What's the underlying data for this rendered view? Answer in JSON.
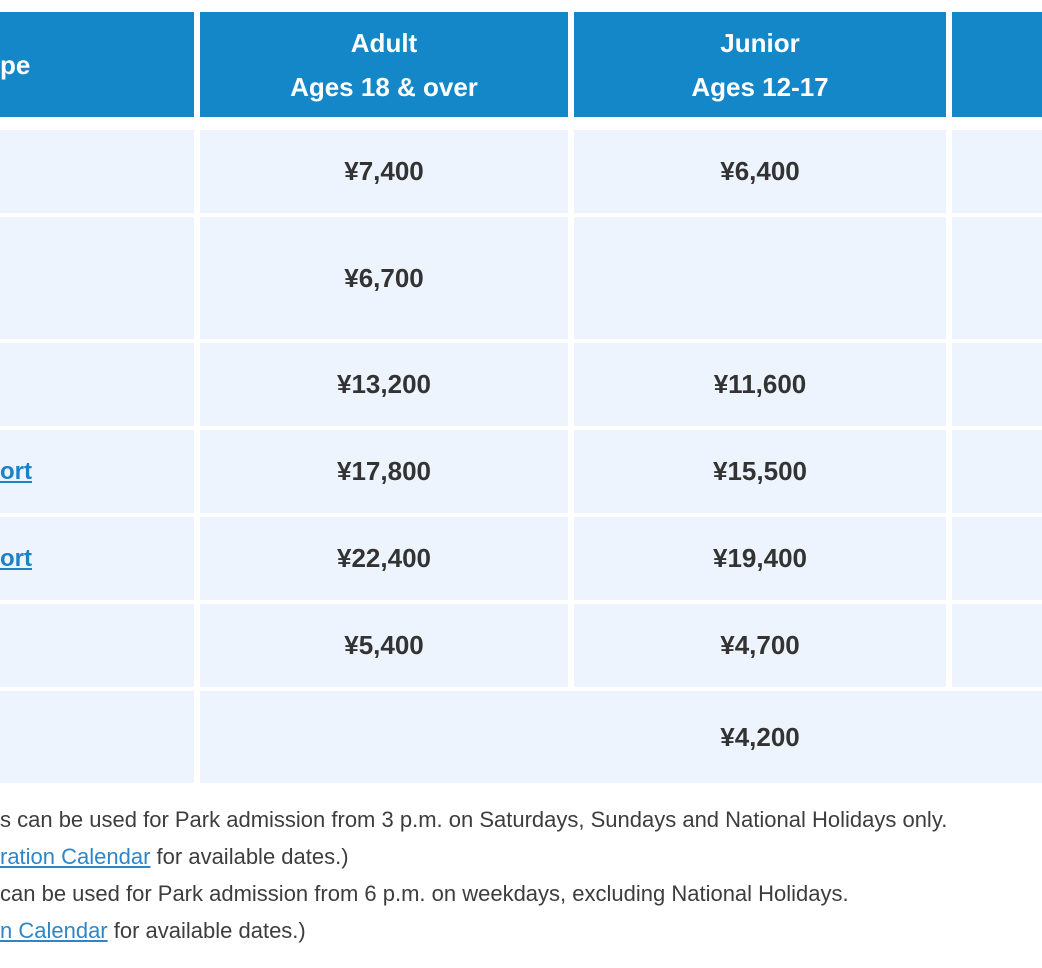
{
  "colors": {
    "header_bg": "#1487C9",
    "cell_bg": "#EDF4FD",
    "price_text": "#333333",
    "table_link": "#1B82C5",
    "note_link": "#2E86C8",
    "note_text": "#3D3D3D"
  },
  "table": {
    "header": {
      "ticket_type_fragment": "pe",
      "adult_title": "Adult",
      "adult_subtitle": "Ages 18 & over",
      "junior_title": "Junior",
      "junior_subtitle": "Ages 12-17"
    },
    "rows": [
      {
        "adult": "¥7,400",
        "junior": "¥6,400"
      },
      {
        "adult": "¥6,700",
        "junior": ""
      },
      {
        "adult": "¥13,200",
        "junior": "¥11,600"
      },
      {
        "name_link": "ort",
        "adult": "¥17,800",
        "junior": "¥15,500"
      },
      {
        "name_link": "ort",
        "adult": "¥22,400",
        "junior": "¥19,400"
      },
      {
        "adult": "¥5,400",
        "junior": "¥4,700"
      },
      {
        "merged_price": "¥4,200"
      }
    ]
  },
  "notes": {
    "line1": "s can be used for Park admission from 3 p.m. on Saturdays, Sundays and National Holidays only.",
    "line2_link": "ration Calendar",
    "line2_rest": " for available dates.)",
    "line3": "can be used for Park admission from 6 p.m. on weekdays, excluding National Holidays.",
    "line4_link": "n Calendar",
    "line4_rest": " for available dates.)"
  }
}
